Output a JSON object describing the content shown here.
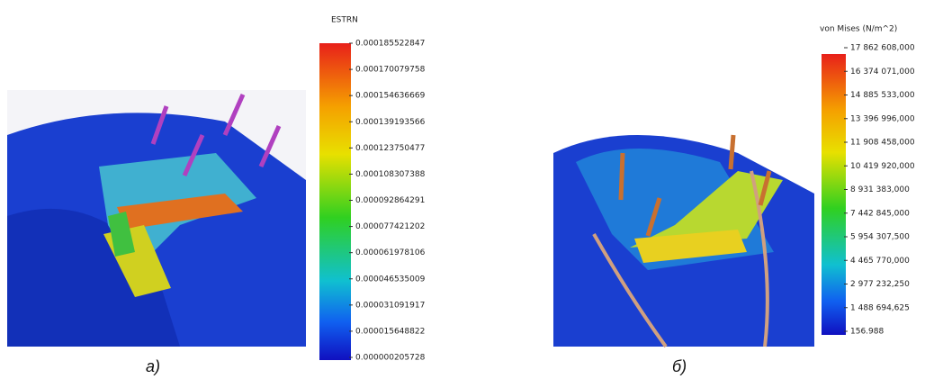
{
  "panel_a": {
    "legend_title": "ESTRN",
    "legend_labels": [
      "0.000185522847",
      "0.000170079758",
      "0.000154636669",
      "0.000139193566",
      "0.000123750477",
      "0.000108307388",
      "0.000092864291",
      "0.000077421202",
      "0.000061978106",
      "0.000046535009",
      "0.000031091917",
      "0.000015648822",
      "0.000000205728"
    ],
    "caption": "а)"
  },
  "panel_b": {
    "legend_title": "von Mises (N/m^2)",
    "legend_labels": [
      "17 862 608,000",
      "16 374 071,000",
      "14 885 533,000",
      "13 396 996,000",
      "11 908 458,000",
      "10 419 920,000",
      "8 931 383,000",
      "7 442 845,000",
      "5 954 307,500",
      "4 465 770,000",
      "2 977 232,250",
      "1 488 694,625",
      "156.988"
    ],
    "caption": "б)"
  }
}
